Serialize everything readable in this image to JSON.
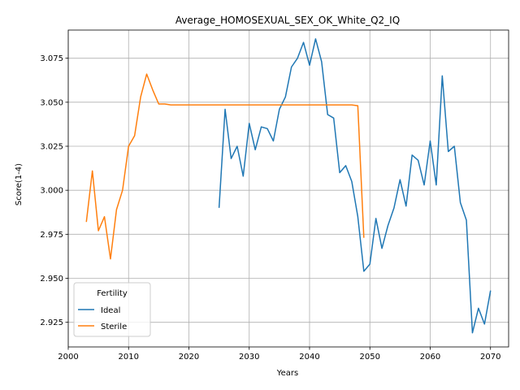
{
  "chart_data": {
    "type": "line",
    "title": "Average_HOMOSEXUAL_SEX_OK_White_Q2_IQ",
    "xlabel": "Years",
    "ylabel": "Score(1-4)",
    "xlim": [
      2000,
      2073
    ],
    "ylim": [
      2.911,
      3.091
    ],
    "xticks": [
      2000,
      2010,
      2020,
      2030,
      2040,
      2050,
      2060,
      2070
    ],
    "yticks": [
      2.925,
      2.95,
      2.975,
      3.0,
      3.025,
      3.05,
      3.075
    ],
    "ytick_labels": [
      "2.925",
      "2.950",
      "2.975",
      "3.000",
      "3.025",
      "3.050",
      "3.075"
    ],
    "grid": true,
    "legend": {
      "title": "Fertility",
      "placement": "lower-left"
    },
    "series": [
      {
        "name": "Ideal",
        "color": "#1f77b4",
        "x": [
          2025,
          2026,
          2027,
          2028,
          2029,
          2030,
          2031,
          2032,
          2033,
          2034,
          2035,
          2036,
          2037,
          2038,
          2039,
          2040,
          2041,
          2042,
          2043,
          2044,
          2045,
          2046,
          2047,
          2048,
          2049,
          2050,
          2051,
          2052,
          2053,
          2054,
          2055,
          2056,
          2057,
          2058,
          2059,
          2060,
          2061,
          2062,
          2063,
          2064,
          2065,
          2066,
          2067,
          2068,
          2069,
          2070
        ],
        "y": [
          2.99,
          3.046,
          3.018,
          3.025,
          3.008,
          3.038,
          3.023,
          3.036,
          3.035,
          3.028,
          3.046,
          3.053,
          3.07,
          3.075,
          3.084,
          3.071,
          3.086,
          3.073,
          3.043,
          3.041,
          3.01,
          3.014,
          3.005,
          2.985,
          2.954,
          2.958,
          2.984,
          2.967,
          2.98,
          2.99,
          3.006,
          2.991,
          3.02,
          3.017,
          3.003,
          3.028,
          3.003,
          3.065,
          3.022,
          3.025,
          2.993,
          2.983,
          2.919,
          2.933,
          2.924,
          2.943
        ]
      },
      {
        "name": "Sterile",
        "color": "#ff7f0e",
        "x": [
          2003,
          2004,
          2005,
          2006,
          2007,
          2008,
          2009,
          2010,
          2011,
          2012,
          2013,
          2014,
          2015,
          2016,
          2017,
          2018,
          2019,
          2020,
          2021,
          2022,
          2023,
          2024,
          2025,
          2026,
          2027,
          2028,
          2029,
          2030,
          2031,
          2032,
          2033,
          2034,
          2035,
          2036,
          2037,
          2038,
          2039,
          2040,
          2041,
          2042,
          2043,
          2044,
          2045,
          2046,
          2047,
          2048,
          2049
        ],
        "y": [
          2.982,
          3.011,
          2.977,
          2.985,
          2.961,
          2.989,
          3.0,
          3.025,
          3.031,
          3.053,
          3.066,
          3.057,
          3.049,
          3.049,
          3.0485,
          3.0485,
          3.0485,
          3.0485,
          3.0485,
          3.0485,
          3.0485,
          3.0485,
          3.0485,
          3.0485,
          3.0485,
          3.0485,
          3.0485,
          3.0485,
          3.0485,
          3.0485,
          3.0485,
          3.0485,
          3.0485,
          3.0485,
          3.0485,
          3.0485,
          3.0485,
          3.0485,
          3.0485,
          3.0485,
          3.0485,
          3.0485,
          3.0485,
          3.0485,
          3.0485,
          3.048,
          2.973
        ]
      }
    ]
  }
}
